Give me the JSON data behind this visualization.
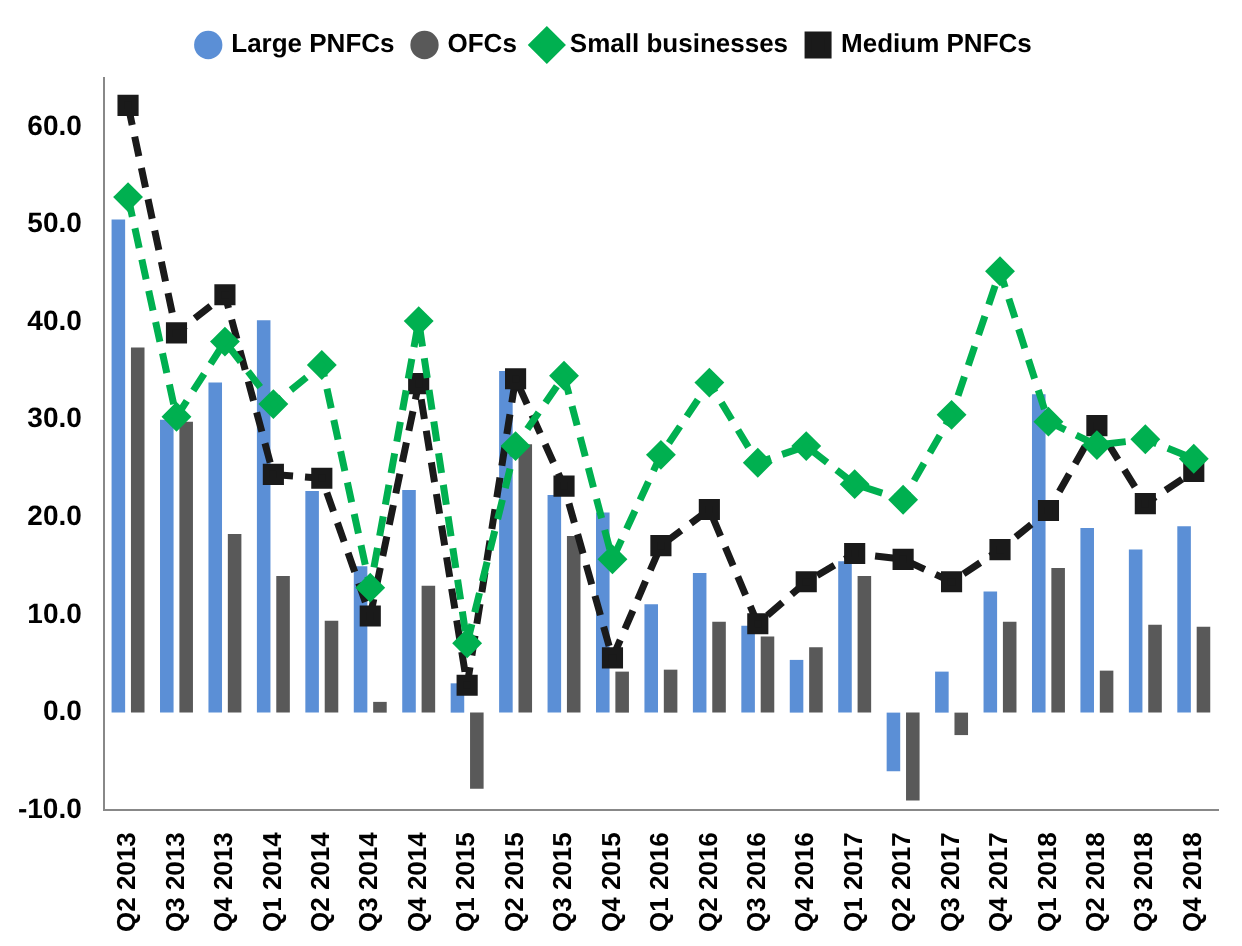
{
  "chart_data": {
    "type": "bar",
    "categories": [
      "Q2 2013",
      "Q3 2013",
      "Q4 2013",
      "Q1 2014",
      "Q2 2014",
      "Q3 2014",
      "Q4 2014",
      "Q1 2015",
      "Q2 2015",
      "Q3 2015",
      "Q4 2015",
      "Q1 2016",
      "Q2 2016",
      "Q3 2016",
      "Q4 2016",
      "Q1 2017",
      "Q2 2017",
      "Q3 2017",
      "Q4 2017",
      "Q1 2018",
      "Q2 2018",
      "Q3 2018",
      "Q4 2018"
    ],
    "series": [
      {
        "name": "Large PNFCs",
        "color": "#5b8fd6",
        "values": [
          50.5,
          30,
          33.8,
          40.2,
          22.7,
          15,
          22.8,
          3,
          35,
          22.3,
          20.5,
          11.1,
          14.3,
          8.9,
          5.4,
          15.5,
          -6,
          4.2,
          12.4,
          32.6,
          18.9,
          16.7,
          19.1
        ]
      },
      {
        "name": "OFCs",
        "color": "#595959",
        "values": [
          37.4,
          29.8,
          18.3,
          14,
          9.4,
          1.1,
          13,
          -7.8,
          27.5,
          18.1,
          4.2,
          4.4,
          9.3,
          7.8,
          6.7,
          14,
          -9,
          -2.3,
          9.3,
          14.8,
          4.3,
          9,
          8.8
        ]
      },
      {
        "name": "Small businesses",
        "type": "line",
        "color": "#00b050",
        "marker": "diamond",
        "line_style": "dashed",
        "values": [
          52.8,
          30.3,
          38,
          31.6,
          35.6,
          12.8,
          40.1,
          7.1,
          27.3,
          34.5,
          15.7,
          26.4,
          33.8,
          25.6,
          27.3,
          23.4,
          21.8,
          30.5,
          45.2,
          29.8,
          27.4,
          28,
          26
        ]
      },
      {
        "name": "Medium PNFCs",
        "type": "line",
        "color": "#1a1a1a",
        "marker": "square",
        "line_style": "dashed",
        "values": [
          62.2,
          38.9,
          42.8,
          24.4,
          24,
          9.9,
          33.7,
          2.8,
          34.2,
          23.2,
          5.6,
          17.1,
          20.8,
          9.1,
          13.4,
          16.3,
          15.7,
          13.4,
          16.7,
          20.7,
          29.4,
          21.4,
          24.7
        ]
      }
    ],
    "ylim": [
      -10,
      65
    ],
    "yticks": [
      {
        "value": -10,
        "label": "-10.0"
      },
      {
        "value": 0,
        "label": "0.0"
      },
      {
        "value": 10,
        "label": "10.0"
      },
      {
        "value": 20,
        "label": "20.0"
      },
      {
        "value": 30,
        "label": "30.0"
      },
      {
        "value": 40,
        "label": "40.0"
      },
      {
        "value": 50,
        "label": "50.0"
      },
      {
        "value": 60,
        "label": "60.0"
      }
    ],
    "grid": false,
    "legend": "top"
  }
}
